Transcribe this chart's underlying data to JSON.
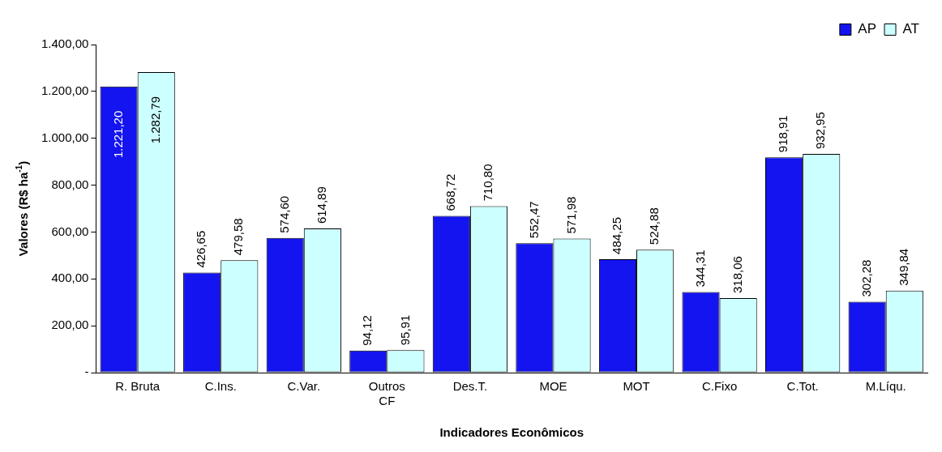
{
  "chart_data": {
    "type": "bar",
    "xlabel": "Indicadores Econômicos",
    "ylabel": "Valores (R$ ha$^{-1}$)",
    "categories": [
      "R. Bruta",
      "C.Ins.",
      "C.Var.",
      "Outros CF",
      "Des.T.",
      "MOE",
      "MOT",
      "C.Fixo",
      "C.Tot.",
      "M.Líqu."
    ],
    "series": [
      {
        "name": "AP",
        "color": "#1414f0",
        "values": [
          1221.2,
          426.65,
          574.6,
          94.12,
          668.72,
          552.47,
          484.25,
          344.31,
          918.91,
          302.28
        ],
        "value_labels": [
          "1.221,20",
          "426,65",
          "574,60",
          "94,12",
          "668,72",
          "552,47",
          "484,25",
          "344,31",
          "918,91",
          "302,28"
        ]
      },
      {
        "name": "AT",
        "color": "#ccffff",
        "values": [
          1282.79,
          479.58,
          614.89,
          95.91,
          710.8,
          571.98,
          524.88,
          318.06,
          932.95,
          349.84
        ],
        "value_labels": [
          "1.282,79",
          "479,58",
          "614,89",
          "95,91",
          "710,80",
          "571,98",
          "524,88",
          "318,06",
          "932,95",
          "349,84"
        ]
      }
    ],
    "ylim": [
      0,
      1400
    ],
    "yticks": [
      {
        "value": 0,
        "label": "-"
      },
      {
        "value": 200,
        "label": "200,00"
      },
      {
        "value": 400,
        "label": "400,00"
      },
      {
        "value": 600,
        "label": "600,00"
      },
      {
        "value": 800,
        "label": "800,00"
      },
      {
        "value": 1000,
        "label": "1.000,00"
      },
      {
        "value": 1200,
        "label": "1.200,00"
      },
      {
        "value": 1400,
        "label": "1.400,00"
      }
    ],
    "grid": false,
    "legend": "top right"
  }
}
